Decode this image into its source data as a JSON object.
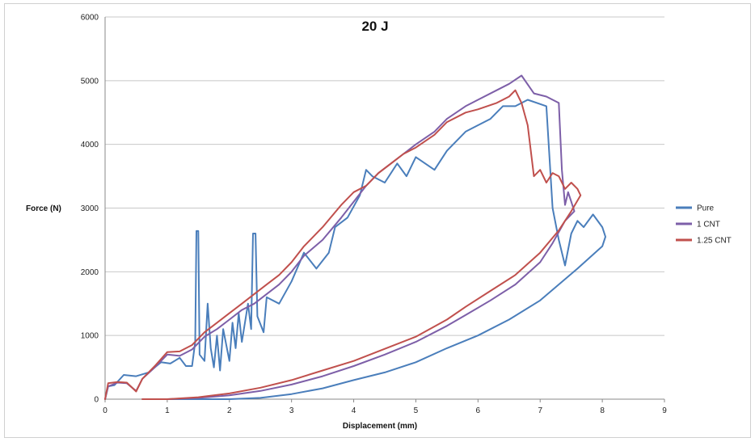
{
  "chart_data": {
    "type": "line",
    "title": "20 J",
    "xlabel": "Displacement (mm)",
    "ylabel": "Force (N)",
    "xlim": [
      0,
      9
    ],
    "ylim": [
      0,
      6000
    ],
    "xticks": [
      "0",
      "1",
      "2",
      "3",
      "4",
      "5",
      "6",
      "7",
      "8",
      "9"
    ],
    "yticks": [
      "0",
      "1000",
      "2000",
      "3000",
      "4000",
      "5000",
      "6000"
    ],
    "grid": "horizontal",
    "legend_position": "right",
    "series": [
      {
        "name": "Pure",
        "color": "#4a7ebb",
        "points": [
          [
            0,
            0
          ],
          [
            0.05,
            200
          ],
          [
            0.15,
            220
          ],
          [
            0.3,
            380
          ],
          [
            0.5,
            360
          ],
          [
            0.7,
            420
          ],
          [
            0.9,
            580
          ],
          [
            1.05,
            560
          ],
          [
            1.2,
            650
          ],
          [
            1.3,
            520
          ],
          [
            1.4,
            520
          ],
          [
            1.45,
            900
          ],
          [
            1.47,
            2640
          ],
          [
            1.5,
            2640
          ],
          [
            1.52,
            700
          ],
          [
            1.6,
            600
          ],
          [
            1.65,
            1500
          ],
          [
            1.7,
            800
          ],
          [
            1.75,
            500
          ],
          [
            1.8,
            1000
          ],
          [
            1.85,
            450
          ],
          [
            1.9,
            1100
          ],
          [
            2.0,
            600
          ],
          [
            2.05,
            1200
          ],
          [
            2.1,
            800
          ],
          [
            2.15,
            1350
          ],
          [
            2.2,
            900
          ],
          [
            2.3,
            1500
          ],
          [
            2.35,
            1100
          ],
          [
            2.38,
            2600
          ],
          [
            2.42,
            2600
          ],
          [
            2.45,
            1300
          ],
          [
            2.55,
            1050
          ],
          [
            2.6,
            1600
          ],
          [
            2.8,
            1500
          ],
          [
            3.0,
            1850
          ],
          [
            3.2,
            2300
          ],
          [
            3.4,
            2050
          ],
          [
            3.6,
            2300
          ],
          [
            3.7,
            2700
          ],
          [
            3.9,
            2850
          ],
          [
            4.1,
            3200
          ],
          [
            4.2,
            3600
          ],
          [
            4.3,
            3500
          ],
          [
            4.5,
            3400
          ],
          [
            4.7,
            3700
          ],
          [
            4.85,
            3500
          ],
          [
            5.0,
            3800
          ],
          [
            5.3,
            3600
          ],
          [
            5.5,
            3900
          ],
          [
            5.8,
            4200
          ],
          [
            6.0,
            4300
          ],
          [
            6.2,
            4400
          ],
          [
            6.4,
            4600
          ],
          [
            6.6,
            4600
          ],
          [
            6.8,
            4700
          ],
          [
            7.1,
            4600
          ],
          [
            7.2,
            3000
          ],
          [
            7.3,
            2500
          ],
          [
            7.4,
            2100
          ],
          [
            7.5,
            2600
          ],
          [
            7.6,
            2800
          ],
          [
            7.7,
            2700
          ],
          [
            7.85,
            2900
          ],
          [
            8.0,
            2700
          ],
          [
            8.05,
            2550
          ],
          [
            8.0,
            2400
          ],
          [
            7.6,
            2050
          ],
          [
            7.0,
            1550
          ],
          [
            6.5,
            1250
          ],
          [
            6.0,
            1000
          ],
          [
            5.5,
            800
          ],
          [
            5.0,
            580
          ],
          [
            4.5,
            420
          ],
          [
            4.0,
            300
          ],
          [
            3.5,
            170
          ],
          [
            3.0,
            80
          ],
          [
            2.5,
            20
          ],
          [
            2.0,
            0
          ],
          [
            1.5,
            0
          ],
          [
            1.0,
            0
          ]
        ]
      },
      {
        "name": "1 CNT",
        "color": "#7d5fa8",
        "points": [
          [
            0,
            0
          ],
          [
            0.05,
            200
          ],
          [
            0.2,
            260
          ],
          [
            0.35,
            250
          ],
          [
            0.5,
            130
          ],
          [
            0.6,
            320
          ],
          [
            0.8,
            500
          ],
          [
            1.0,
            700
          ],
          [
            1.2,
            680
          ],
          [
            1.4,
            780
          ],
          [
            1.6,
            980
          ],
          [
            1.8,
            1100
          ],
          [
            2.0,
            1250
          ],
          [
            2.2,
            1400
          ],
          [
            2.4,
            1500
          ],
          [
            2.6,
            1650
          ],
          [
            2.8,
            1800
          ],
          [
            3.0,
            2000
          ],
          [
            3.2,
            2250
          ],
          [
            3.5,
            2500
          ],
          [
            3.8,
            2850
          ],
          [
            4.0,
            3100
          ],
          [
            4.2,
            3350
          ],
          [
            4.4,
            3550
          ],
          [
            4.6,
            3700
          ],
          [
            4.8,
            3850
          ],
          [
            5.0,
            4000
          ],
          [
            5.3,
            4200
          ],
          [
            5.5,
            4400
          ],
          [
            5.8,
            4600
          ],
          [
            6.0,
            4700
          ],
          [
            6.3,
            4850
          ],
          [
            6.5,
            4950
          ],
          [
            6.7,
            5080
          ],
          [
            6.9,
            4800
          ],
          [
            7.1,
            4750
          ],
          [
            7.3,
            4650
          ],
          [
            7.35,
            3600
          ],
          [
            7.4,
            3050
          ],
          [
            7.45,
            3250
          ],
          [
            7.5,
            3100
          ],
          [
            7.55,
            2950
          ],
          [
            7.4,
            2800
          ],
          [
            7.2,
            2450
          ],
          [
            7.0,
            2150
          ],
          [
            6.6,
            1800
          ],
          [
            6.2,
            1550
          ],
          [
            5.8,
            1320
          ],
          [
            5.5,
            1150
          ],
          [
            5.0,
            900
          ],
          [
            4.5,
            700
          ],
          [
            4.0,
            520
          ],
          [
            3.5,
            360
          ],
          [
            3.0,
            230
          ],
          [
            2.5,
            130
          ],
          [
            2.0,
            60
          ],
          [
            1.5,
            20
          ],
          [
            1.0,
            0
          ],
          [
            0.6,
            0
          ]
        ]
      },
      {
        "name": "1.25 CNT",
        "color": "#c0504d",
        "points": [
          [
            0,
            0
          ],
          [
            0.05,
            250
          ],
          [
            0.2,
            270
          ],
          [
            0.35,
            260
          ],
          [
            0.5,
            120
          ],
          [
            0.6,
            320
          ],
          [
            0.8,
            520
          ],
          [
            1.0,
            740
          ],
          [
            1.2,
            750
          ],
          [
            1.4,
            850
          ],
          [
            1.6,
            1050
          ],
          [
            1.8,
            1200
          ],
          [
            2.0,
            1350
          ],
          [
            2.2,
            1500
          ],
          [
            2.4,
            1650
          ],
          [
            2.6,
            1800
          ],
          [
            2.8,
            1950
          ],
          [
            3.0,
            2150
          ],
          [
            3.2,
            2400
          ],
          [
            3.5,
            2700
          ],
          [
            3.8,
            3050
          ],
          [
            4.0,
            3250
          ],
          [
            4.2,
            3350
          ],
          [
            4.4,
            3550
          ],
          [
            4.6,
            3700
          ],
          [
            4.8,
            3850
          ],
          [
            5.0,
            3950
          ],
          [
            5.3,
            4150
          ],
          [
            5.5,
            4350
          ],
          [
            5.8,
            4500
          ],
          [
            6.0,
            4550
          ],
          [
            6.3,
            4650
          ],
          [
            6.5,
            4750
          ],
          [
            6.6,
            4850
          ],
          [
            6.7,
            4650
          ],
          [
            6.8,
            4300
          ],
          [
            6.9,
            3500
          ],
          [
            7.0,
            3600
          ],
          [
            7.1,
            3400
          ],
          [
            7.2,
            3550
          ],
          [
            7.3,
            3500
          ],
          [
            7.4,
            3300
          ],
          [
            7.5,
            3400
          ],
          [
            7.6,
            3300
          ],
          [
            7.65,
            3200
          ],
          [
            7.5,
            2950
          ],
          [
            7.3,
            2650
          ],
          [
            7.0,
            2300
          ],
          [
            6.6,
            1950
          ],
          [
            6.2,
            1700
          ],
          [
            5.8,
            1450
          ],
          [
            5.5,
            1250
          ],
          [
            5.0,
            980
          ],
          [
            4.5,
            790
          ],
          [
            4.0,
            600
          ],
          [
            3.5,
            450
          ],
          [
            3.0,
            300
          ],
          [
            2.5,
            180
          ],
          [
            2.0,
            90
          ],
          [
            1.5,
            30
          ],
          [
            1.0,
            0
          ],
          [
            0.6,
            0
          ]
        ]
      }
    ]
  }
}
